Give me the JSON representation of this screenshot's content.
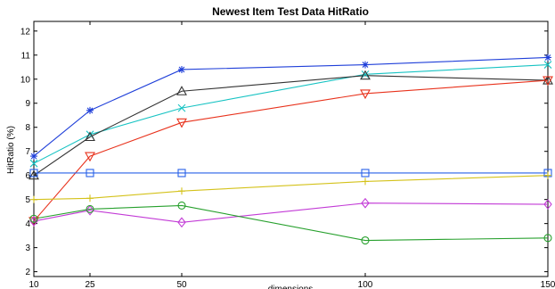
{
  "chart_data": {
    "type": "line",
    "title": "Newest Item Test Data HitRatio",
    "xlabel": "dimensions",
    "ylabel": "HitRatio (%)",
    "x": [
      10,
      25,
      50,
      100,
      150
    ],
    "x_tick_labels": [
      "10",
      "25",
      "50",
      "100",
      "150"
    ],
    "xlim": [
      10,
      150
    ],
    "ylim": [
      1.8,
      12.4
    ],
    "y_ticks": [
      2,
      3,
      4,
      5,
      6,
      7,
      8,
      9,
      10,
      11,
      12
    ],
    "y_tick_labels": [
      "2",
      "3",
      "4",
      "5",
      "6",
      "7",
      "8",
      "9",
      "10",
      "11",
      "12"
    ],
    "grid": false,
    "legend": "none",
    "series": [
      {
        "color": "#1f3fd9",
        "marker": "asterisk",
        "values": [
          6.8,
          8.7,
          10.4,
          10.6,
          10.9
        ]
      },
      {
        "color": "#17c3c3",
        "marker": "x",
        "values": [
          6.5,
          7.7,
          8.8,
          10.2,
          10.6
        ]
      },
      {
        "color": "#333333",
        "marker": "triangle-up",
        "values": [
          6.0,
          7.6,
          9.5,
          10.15,
          9.95
        ]
      },
      {
        "color": "#e8321c",
        "marker": "triangle-down",
        "values": [
          4.1,
          6.8,
          8.2,
          9.4,
          9.95
        ]
      },
      {
        "color": "#2860e8",
        "marker": "square",
        "values": [
          6.1,
          6.1,
          6.1,
          6.1,
          6.1
        ]
      },
      {
        "color": "#d4c21a",
        "marker": "plus",
        "values": [
          5.0,
          5.05,
          5.35,
          5.75,
          6.0
        ]
      },
      {
        "color": "#c23ad6",
        "marker": "diamond",
        "values": [
          4.1,
          4.55,
          4.05,
          4.85,
          4.8
        ]
      },
      {
        "color": "#27a02d",
        "marker": "circle",
        "values": [
          4.2,
          4.6,
          4.75,
          3.3,
          3.4
        ]
      }
    ]
  }
}
